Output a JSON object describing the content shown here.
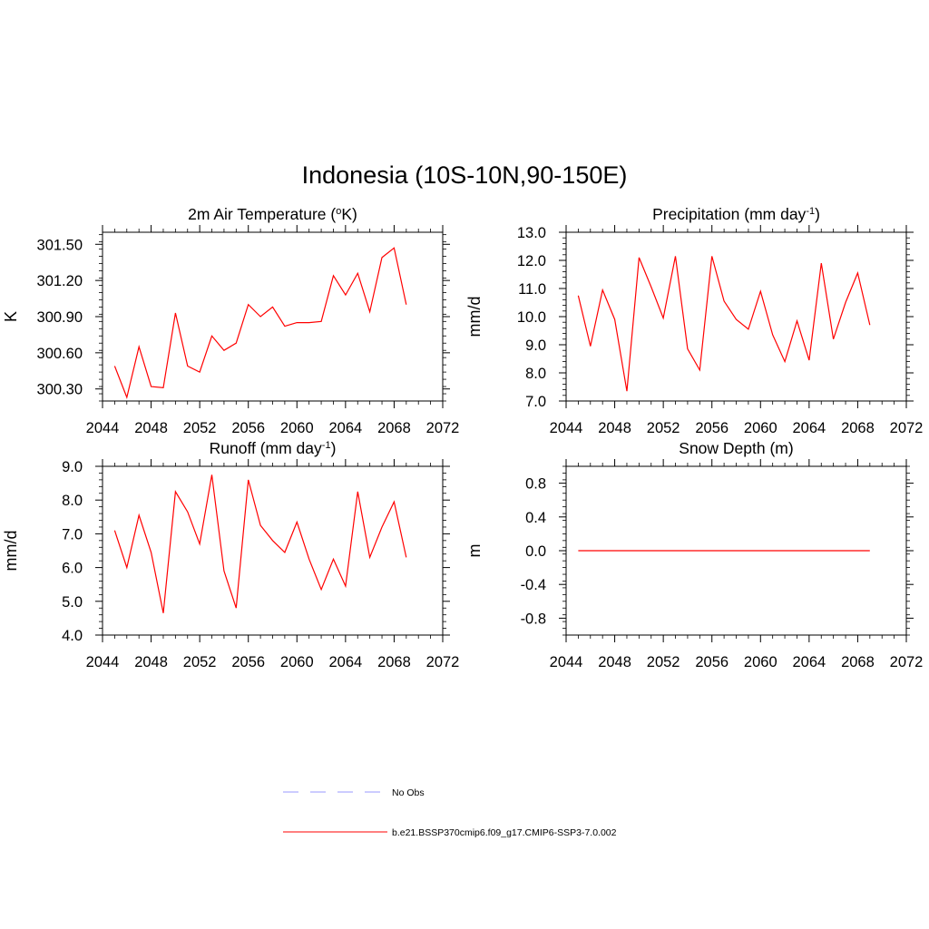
{
  "title": "Indonesia (10S-10N,90-150E)",
  "chart_data": [
    {
      "type": "line",
      "title": "2m Air Temperature (",
      "title_sup": "o",
      "title_end": "K)",
      "ylabel": "K",
      "xlim": [
        2044,
        2072
      ],
      "ylim": [
        300.2,
        301.6
      ],
      "xticks": [
        2044,
        2048,
        2052,
        2056,
        2060,
        2064,
        2068,
        2072
      ],
      "xtick_labels": [
        "2044",
        "2048",
        "2052",
        "2056",
        "2060",
        "2064",
        "2068",
        "2072"
      ],
      "yticks": [
        300.3,
        300.6,
        300.9,
        301.2,
        301.5
      ],
      "ytick_labels": [
        "300.30",
        "300.60",
        "300.90",
        "301.20",
        "301.50"
      ],
      "series": [
        {
          "color": "#ff0000",
          "x": [
            2045,
            2046,
            2047,
            2048,
            2049,
            2050,
            2051,
            2052,
            2053,
            2054,
            2055,
            2056,
            2057,
            2058,
            2059,
            2060,
            2061,
            2062,
            2063,
            2064,
            2065,
            2066,
            2067,
            2068,
            2069
          ],
          "y": [
            300.49,
            300.23,
            300.65,
            300.32,
            300.31,
            300.93,
            300.49,
            300.44,
            300.74,
            300.62,
            300.68,
            301.0,
            300.9,
            300.98,
            300.82,
            300.85,
            300.85,
            300.86,
            301.24,
            301.08,
            301.26,
            300.94,
            301.39,
            301.47,
            301.0
          ]
        }
      ]
    },
    {
      "type": "line",
      "title": "Precipitation (mm day",
      "title_sup": "-1",
      "title_end": ")",
      "ylabel": "mm/d",
      "xlim": [
        2044,
        2072
      ],
      "ylim": [
        7.0,
        13.0
      ],
      "xticks": [
        2044,
        2048,
        2052,
        2056,
        2060,
        2064,
        2068,
        2072
      ],
      "xtick_labels": [
        "2044",
        "2048",
        "2052",
        "2056",
        "2060",
        "2064",
        "2068",
        "2072"
      ],
      "yticks": [
        7,
        8,
        9,
        10,
        11,
        12,
        13
      ],
      "ytick_labels": [
        "7.0",
        "8.0",
        "9.0",
        "10.0",
        "11.0",
        "12.0",
        "13.0"
      ],
      "series": [
        {
          "color": "#ff0000",
          "x": [
            2045,
            2046,
            2047,
            2048,
            2049,
            2050,
            2051,
            2052,
            2053,
            2054,
            2055,
            2056,
            2057,
            2058,
            2059,
            2060,
            2061,
            2062,
            2063,
            2064,
            2065,
            2066,
            2067,
            2068,
            2069
          ],
          "y": [
            10.75,
            8.95,
            10.95,
            9.9,
            7.35,
            12.1,
            11.05,
            9.95,
            12.15,
            8.85,
            8.1,
            12.15,
            10.55,
            9.9,
            9.55,
            10.9,
            9.35,
            8.4,
            9.85,
            8.45,
            11.9,
            9.2,
            10.5,
            11.55,
            9.7
          ]
        }
      ]
    },
    {
      "type": "line",
      "title": "Runoff (mm day",
      "title_sup": "-1",
      "title_end": ")",
      "ylabel": "mm/d",
      "xlim": [
        2044,
        2072
      ],
      "ylim": [
        4.0,
        9.0
      ],
      "xticks": [
        2044,
        2048,
        2052,
        2056,
        2060,
        2064,
        2068,
        2072
      ],
      "xtick_labels": [
        "2044",
        "2048",
        "2052",
        "2056",
        "2060",
        "2064",
        "2068",
        "2072"
      ],
      "yticks": [
        4,
        5,
        6,
        7,
        8,
        9
      ],
      "ytick_labels": [
        "4.0",
        "5.0",
        "6.0",
        "7.0",
        "8.0",
        "9.0"
      ],
      "series": [
        {
          "color": "#ff0000",
          "x": [
            2045,
            2046,
            2047,
            2048,
            2049,
            2050,
            2051,
            2052,
            2053,
            2054,
            2055,
            2056,
            2057,
            2058,
            2059,
            2060,
            2061,
            2062,
            2063,
            2064,
            2065,
            2066,
            2067,
            2068,
            2069
          ],
          "y": [
            7.1,
            6.0,
            7.55,
            6.45,
            4.65,
            8.25,
            7.65,
            6.7,
            8.75,
            5.9,
            4.8,
            8.6,
            7.25,
            6.8,
            6.45,
            7.35,
            6.25,
            5.35,
            6.25,
            5.45,
            8.25,
            6.3,
            7.2,
            7.95,
            6.3
          ]
        }
      ]
    },
    {
      "type": "line",
      "title": "Snow Depth (m)",
      "title_sup": "",
      "title_end": "",
      "ylabel": "m",
      "xlim": [
        2044,
        2072
      ],
      "ylim": [
        -1.0,
        1.0
      ],
      "xticks": [
        2044,
        2048,
        2052,
        2056,
        2060,
        2064,
        2068,
        2072
      ],
      "xtick_labels": [
        "2044",
        "2048",
        "2052",
        "2056",
        "2060",
        "2064",
        "2068",
        "2072"
      ],
      "yticks": [
        -0.8,
        -0.4,
        0.0,
        0.4,
        0.8
      ],
      "ytick_labels": [
        "-0.8",
        "-0.4",
        "0.0",
        "0.4",
        "0.8"
      ],
      "series": [
        {
          "color": "#ff0000",
          "x": [
            2045,
            2069
          ],
          "y": [
            0.0,
            0.0
          ]
        }
      ]
    }
  ],
  "legend": [
    {
      "label": "No Obs",
      "color": "#9999ff",
      "style": "dashed"
    },
    {
      "label": "b.e21.BSSP370cmip6.f09_g17.CMIP6-SSP3-7.0.002",
      "color": "#ff0000",
      "style": "solid"
    }
  ]
}
